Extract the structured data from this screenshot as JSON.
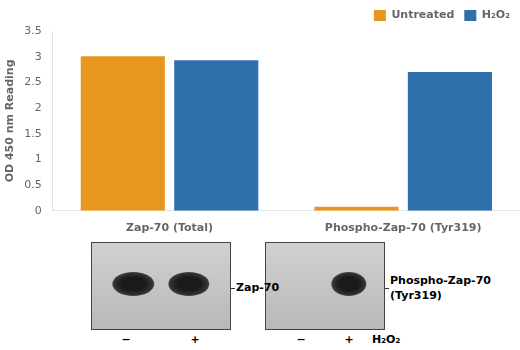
{
  "chart_data": {
    "type": "bar",
    "categories": [
      "Zap-70 (Total)",
      "Phospho-Zap-70 (Tyr319)"
    ],
    "series": [
      {
        "name": "Untreated",
        "color": "#E8971E",
        "values": [
          3.01,
          0.08
        ]
      },
      {
        "name": "H₂O₂",
        "color": "#2E6FAC",
        "values": [
          2.93,
          2.7
        ]
      }
    ],
    "ylabel": "OD 450 nm Reading",
    "ylim": [
      0,
      3.5
    ],
    "yticks": [
      0,
      0.5,
      1,
      1.5,
      2,
      2.5,
      3,
      3.5
    ],
    "grid": false,
    "legend": "upper right",
    "annotations": [
      "−",
      "+",
      "Zap-70",
      "−",
      "+",
      "H₂O₂",
      "Phospho-Zap-70",
      "(Tyr319)"
    ]
  }
}
